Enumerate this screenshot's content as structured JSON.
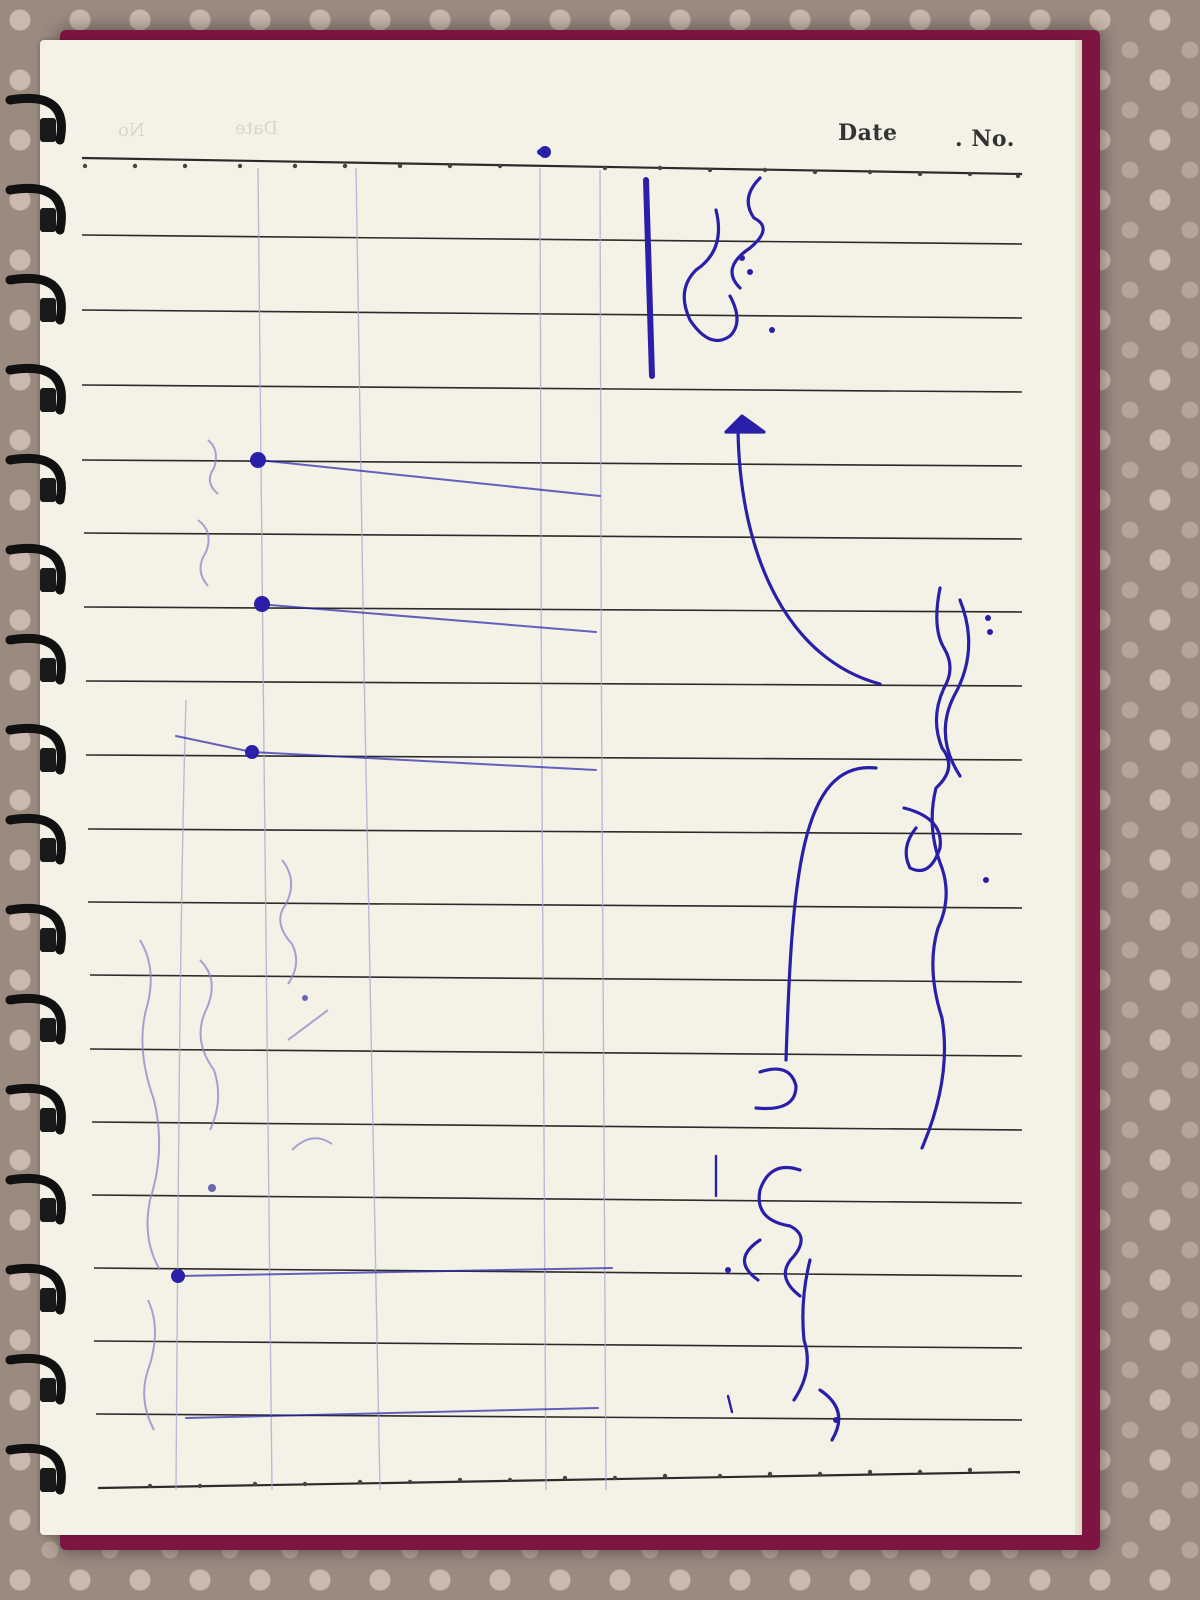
{
  "notebook": {
    "header": {
      "date_label": "Date",
      "number_label": ". No.",
      "ghost_date_label": "Date",
      "ghost_number_label": "No"
    },
    "handwriting": {
      "ink_color": "#2a1fa8",
      "faint_ink_color": "#8a86c8",
      "words": [
        "آداب العلم",
        "آفات",
        "قسمين"
      ]
    },
    "colors": {
      "paper": "#f4f2e6",
      "rule_line": "#2b2b2b",
      "cover": "#7c1540",
      "spiral": "#111111",
      "tablecloth": "#9a8a80"
    }
  }
}
